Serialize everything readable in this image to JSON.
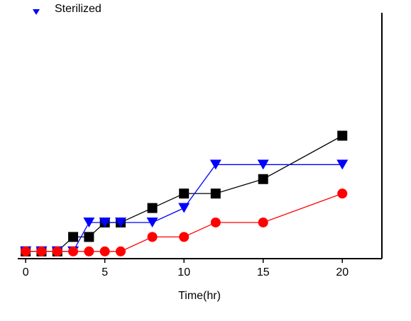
{
  "chart_data": {
    "type": "line",
    "xlabel": "Time(hr)",
    "x": [
      0,
      1,
      2,
      3,
      4,
      5,
      6,
      8,
      10,
      12,
      15,
      20
    ],
    "series": [
      {
        "color": "#000000",
        "marker": "square",
        "values": [
          0,
          0,
          0,
          1,
          1,
          2,
          2,
          3,
          4,
          4,
          5,
          8
        ]
      },
      {
        "name": "Sterilized",
        "color": "#0000ff",
        "marker": "triangle",
        "values": [
          0,
          0,
          0,
          0,
          2,
          2,
          2,
          2,
          3,
          6,
          6,
          6
        ]
      },
      {
        "color": "#ff0000",
        "marker": "circle",
        "values": [
          0,
          0,
          0,
          0,
          0,
          0,
          0,
          1,
          1,
          2,
          2,
          4
        ]
      }
    ],
    "xlim": [
      -0.5,
      22.5
    ],
    "xticks": [
      0,
      5,
      10,
      15,
      20
    ],
    "ylim": [
      -0.5,
      16.5
    ]
  }
}
